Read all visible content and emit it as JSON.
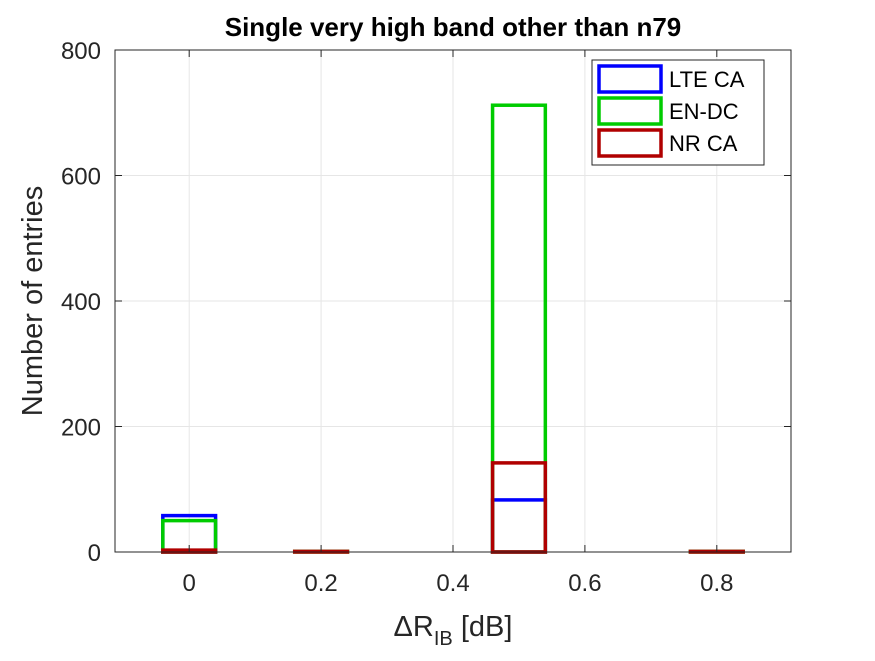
{
  "chart_data": {
    "type": "bar",
    "title": "Single very high band other than n79",
    "xlabel": {
      "main": "ΔR",
      "sub": "IB",
      "rest": " [dB]"
    },
    "ylabel": "Number of entries",
    "xlim": [
      -0.1125,
      0.9125
    ],
    "ylim": [
      0,
      800
    ],
    "x_ticks": [
      0,
      0.2,
      0.4,
      0.6,
      0.8
    ],
    "x_tick_labels": [
      "0",
      "0.2",
      "0.4",
      "0.6",
      "0.8"
    ],
    "y_ticks": [
      0,
      200,
      400,
      600,
      800
    ],
    "y_tick_labels": [
      "0",
      "200",
      "400",
      "600",
      "800"
    ],
    "grid": true,
    "legend_position": "top-right",
    "bin_centers": [
      0,
      0.1,
      0.2,
      0.3,
      0.4,
      0.5,
      0.6,
      0.7,
      0.8
    ],
    "bin_width": 0.08,
    "series": [
      {
        "name": "LTE CA",
        "color": "#0000ff",
        "values": [
          58,
          0,
          0,
          0,
          0,
          83,
          0,
          0,
          0
        ]
      },
      {
        "name": "EN-DC",
        "color": "#00cc00",
        "values": [
          50,
          0,
          1,
          0,
          0,
          712,
          0,
          0,
          1
        ]
      },
      {
        "name": "NR CA",
        "color": "#b00000",
        "values": [
          3,
          0,
          1,
          0,
          0,
          142,
          0,
          0,
          1
        ]
      }
    ]
  }
}
